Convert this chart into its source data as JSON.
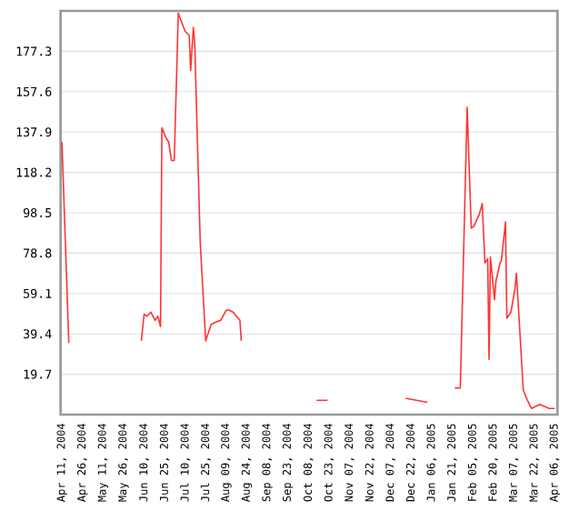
{
  "chart_data": {
    "type": "line",
    "grid": "y",
    "line_style": "solid",
    "marker": "none",
    "xlim": [
      "2004-04-10",
      "2005-04-08"
    ],
    "ylim": [
      0,
      197
    ],
    "yticks": [
      19.7,
      39.4,
      59.1,
      78.8,
      98.5,
      118.2,
      137.9,
      157.6,
      177.3
    ],
    "xticks": [
      {
        "value": "2004-04-11",
        "label": "Apr 11, 2004"
      },
      {
        "value": "2004-04-26",
        "label": "Apr 26, 2004"
      },
      {
        "value": "2004-05-11",
        "label": "May 11, 2004"
      },
      {
        "value": "2004-05-26",
        "label": "May 26, 2004"
      },
      {
        "value": "2004-06-10",
        "label": "Jun 10, 2004"
      },
      {
        "value": "2004-06-25",
        "label": "Jun 25, 2004"
      },
      {
        "value": "2004-07-10",
        "label": "Jul 10, 2004"
      },
      {
        "value": "2004-07-25",
        "label": "Jul 25, 2004"
      },
      {
        "value": "2004-08-09",
        "label": "Aug 09, 2004"
      },
      {
        "value": "2004-08-24",
        "label": "Aug 24, 2004"
      },
      {
        "value": "2004-09-08",
        "label": "Sep 08, 2004"
      },
      {
        "value": "2004-09-23",
        "label": "Sep 23, 2004"
      },
      {
        "value": "2004-10-08",
        "label": "Oct 08, 2004"
      },
      {
        "value": "2004-10-23",
        "label": "Oct 23, 2004"
      },
      {
        "value": "2004-11-07",
        "label": "Nov 07, 2004"
      },
      {
        "value": "2004-11-22",
        "label": "Nov 22, 2004"
      },
      {
        "value": "2004-12-07",
        "label": "Dec 07, 2004"
      },
      {
        "value": "2004-12-22",
        "label": "Dec 22, 2004"
      },
      {
        "value": "2005-01-06",
        "label": "Jan 06, 2005"
      },
      {
        "value": "2005-01-21",
        "label": "Jan 21, 2005"
      },
      {
        "value": "2005-02-05",
        "label": "Feb 05, 2005"
      },
      {
        "value": "2005-02-20",
        "label": "Feb 20, 2005"
      },
      {
        "value": "2005-03-07",
        "label": "Mar 07, 2005"
      },
      {
        "value": "2005-03-22",
        "label": "Mar 22, 2005"
      },
      {
        "value": "2005-04-06",
        "label": "Apr 06, 2005"
      }
    ],
    "series": [
      {
        "color": "#ff3333",
        "x": [
          "2004-04-11",
          "2004-04-16",
          "2004-04-25",
          "2004-06-08",
          "2004-06-10",
          "2004-06-12",
          "2004-06-15",
          "2004-06-18",
          "2004-06-20",
          "2004-06-22",
          "2004-06-23",
          "2004-06-26",
          "2004-06-28",
          "2004-06-30",
          "2004-07-02",
          "2004-07-05",
          "2004-07-06",
          "2004-07-10",
          "2004-07-13",
          "2004-07-14",
          "2004-07-16",
          "2004-07-17",
          "2004-07-21",
          "2004-07-25",
          "2004-07-29",
          "2004-08-01",
          "2004-08-05",
          "2004-08-09",
          "2004-08-11",
          "2004-08-14",
          "2004-08-19",
          "2004-08-20",
          "2004-08-25",
          "2004-10-14",
          "2004-10-22",
          "2004-11-01",
          "2004-12-18",
          "2005-01-03",
          "2005-01-10",
          "2005-01-23",
          "2005-01-27",
          "2005-02-01",
          "2005-02-04",
          "2005-02-06",
          "2005-02-10",
          "2005-02-12",
          "2005-02-14",
          "2005-02-16",
          "2005-02-17",
          "2005-02-18",
          "2005-02-21",
          "2005-02-22",
          "2005-02-25",
          "2005-02-26",
          "2005-03-01",
          "2005-03-02",
          "2005-03-05",
          "2005-03-08",
          "2005-03-09",
          "2005-03-14",
          "2005-03-17",
          "2005-03-20",
          "2005-03-26",
          "2005-04-02",
          "2005-04-06"
        ],
        "values": [
          133,
          35,
          null,
          36,
          49,
          48,
          50,
          46,
          48,
          43,
          140,
          135,
          133,
          124,
          124,
          196,
          194,
          187,
          185,
          168,
          189,
          181,
          84,
          36,
          44,
          45,
          46,
          51,
          51,
          50,
          46,
          36,
          null,
          7,
          7,
          null,
          8,
          6,
          null,
          13,
          13,
          150,
          91,
          92,
          98,
          103,
          74,
          76,
          27,
          77,
          56,
          65,
          74,
          75,
          94,
          47,
          50,
          62,
          69,
          12,
          7,
          3,
          5,
          3,
          3
        ]
      }
    ]
  }
}
